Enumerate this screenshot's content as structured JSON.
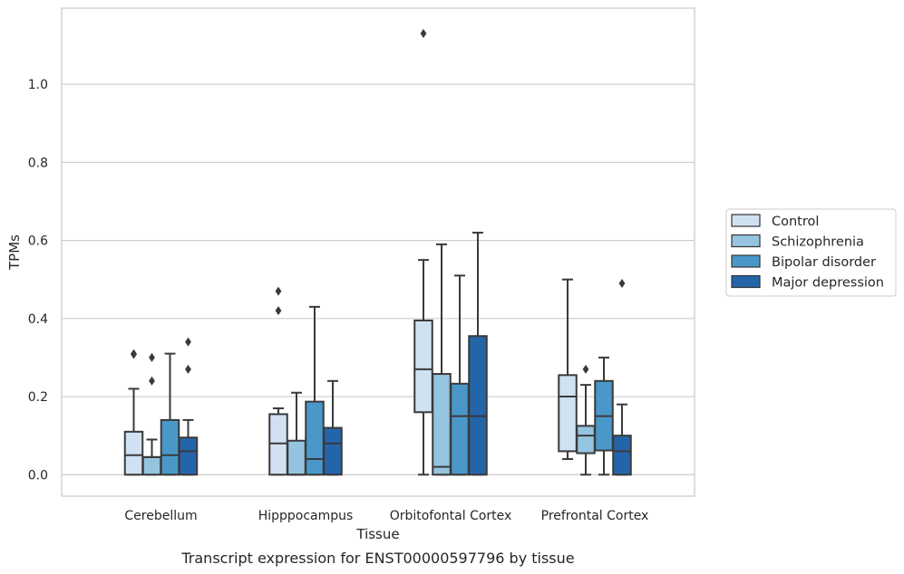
{
  "caption": "Transcript expression for ENST00000597796 by tissue",
  "colors": {
    "Control": "#d0e1f2",
    "Schizophrenia": "#94c4df",
    "Bipolar disorder": "#4a98c9",
    "Major depression": "#2465aa",
    "line": "#3a3a3a",
    "grid": "#cccccc",
    "frame": "#cccccc"
  },
  "chart_data": {
    "type": "box",
    "xlabel": "Tissue",
    "ylabel": "TPMs",
    "ylim": [
      -0.055,
      1.195
    ],
    "yticks": [
      0.0,
      0.2,
      0.4,
      0.6,
      0.8,
      1.0
    ],
    "ytick_labels": [
      "0.0",
      "0.2",
      "0.4",
      "0.6",
      "0.8",
      "1.0"
    ],
    "grid": true,
    "legend_position": "right",
    "categories": [
      "Cerebellum",
      "Hipppocampus",
      "Orbitofontal Cortex",
      "Prefrontal Cortex"
    ],
    "series": [
      {
        "name": "Control",
        "boxes": [
          {
            "whislo": 0.0,
            "q1": 0.0,
            "med": 0.05,
            "q3": 0.11,
            "whishi": 0.22,
            "fliers": [
              0.31,
              0.308
            ]
          },
          {
            "whislo": 0.0,
            "q1": 0.0,
            "med": 0.08,
            "q3": 0.155,
            "whishi": 0.17,
            "fliers": [
              0.42,
              0.47
            ]
          },
          {
            "whislo": 0.0,
            "q1": 0.16,
            "med": 0.27,
            "q3": 0.395,
            "whishi": 0.55,
            "fliers": [
              1.13
            ]
          },
          {
            "whislo": 0.04,
            "q1": 0.06,
            "med": 0.2,
            "q3": 0.255,
            "whishi": 0.5,
            "fliers": []
          }
        ]
      },
      {
        "name": "Schizophrenia",
        "boxes": [
          {
            "whislo": 0.0,
            "q1": 0.0,
            "med": 0.045,
            "q3": 0.045,
            "whishi": 0.09,
            "fliers": [
              0.24,
              0.3
            ]
          },
          {
            "whislo": 0.0,
            "q1": 0.0,
            "med": 0.0,
            "q3": 0.087,
            "whishi": 0.21,
            "fliers": []
          },
          {
            "whislo": 0.0,
            "q1": 0.0,
            "med": 0.02,
            "q3": 0.258,
            "whishi": 0.59,
            "fliers": []
          },
          {
            "whislo": 0.0,
            "q1": 0.055,
            "med": 0.1,
            "q3": 0.125,
            "whishi": 0.23,
            "fliers": [
              0.27
            ]
          }
        ]
      },
      {
        "name": "Bipolar disorder",
        "boxes": [
          {
            "whislo": 0.0,
            "q1": 0.0,
            "med": 0.05,
            "q3": 0.14,
            "whishi": 0.31,
            "fliers": []
          },
          {
            "whislo": 0.0,
            "q1": 0.0,
            "med": 0.04,
            "q3": 0.187,
            "whishi": 0.43,
            "fliers": []
          },
          {
            "whislo": 0.0,
            "q1": 0.0,
            "med": 0.15,
            "q3": 0.233,
            "whishi": 0.51,
            "fliers": []
          },
          {
            "whislo": 0.0,
            "q1": 0.062,
            "med": 0.15,
            "q3": 0.24,
            "whishi": 0.3,
            "fliers": []
          }
        ]
      },
      {
        "name": "Major depression",
        "boxes": [
          {
            "whislo": 0.0,
            "q1": 0.0,
            "med": 0.06,
            "q3": 0.095,
            "whishi": 0.14,
            "fliers": [
              0.27,
              0.34
            ]
          },
          {
            "whislo": 0.0,
            "q1": 0.0,
            "med": 0.08,
            "q3": 0.12,
            "whishi": 0.24,
            "fliers": []
          },
          {
            "whislo": 0.0,
            "q1": 0.0,
            "med": 0.15,
            "q3": 0.355,
            "whishi": 0.62,
            "fliers": []
          },
          {
            "whislo": 0.0,
            "q1": 0.0,
            "med": 0.06,
            "q3": 0.1,
            "whishi": 0.18,
            "fliers": [
              0.49
            ]
          }
        ]
      }
    ]
  }
}
